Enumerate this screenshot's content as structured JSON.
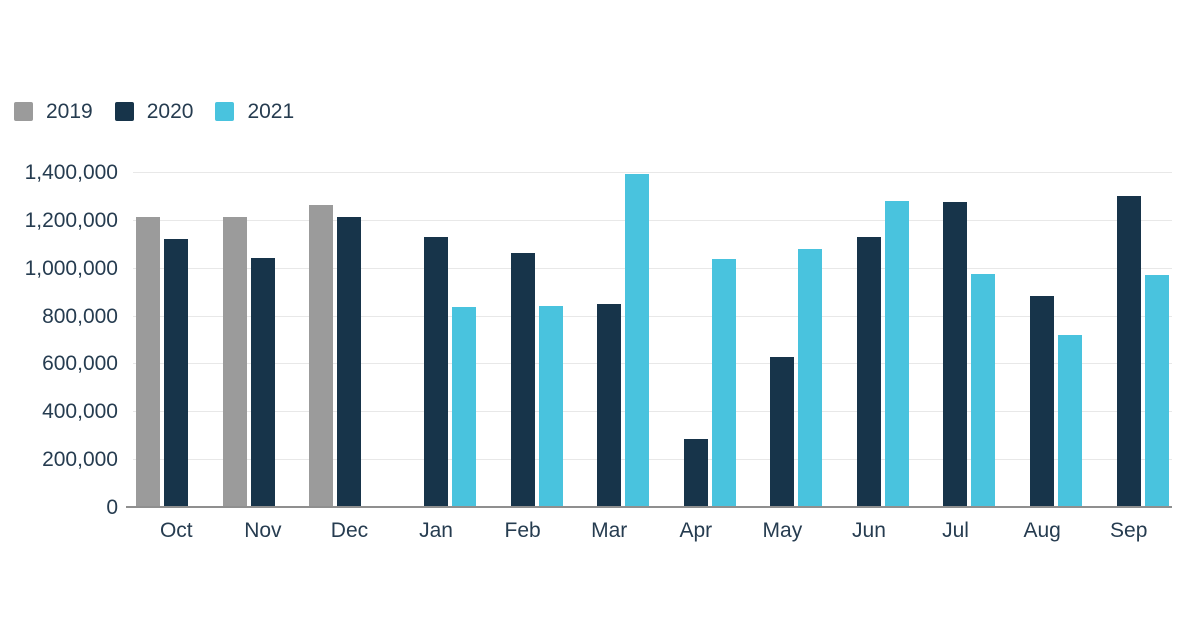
{
  "colors": {
    "series_2019": "#9b9b9b",
    "series_2020": "#17344a",
    "series_2021": "#49c3de",
    "text": "#263c50",
    "gridline": "#e8e8e8",
    "axis_line": "#8f8f8f",
    "background": "#ffffff"
  },
  "legend": {
    "items": [
      {
        "label": "2019",
        "color": "#9b9b9b"
      },
      {
        "label": "2020",
        "color": "#17344a"
      },
      {
        "label": "2021",
        "color": "#49c3de"
      }
    ]
  },
  "chart_data": {
    "type": "bar",
    "title": "",
    "xlabel": "",
    "ylabel": "",
    "categories": [
      "Oct",
      "Nov",
      "Dec",
      "Jan",
      "Feb",
      "Mar",
      "Apr",
      "May",
      "Jun",
      "Jul",
      "Aug",
      "Sep"
    ],
    "series": [
      {
        "name": "2019",
        "color": "#9b9b9b",
        "values": [
          1210000,
          1210000,
          1260000,
          null,
          null,
          null,
          null,
          null,
          null,
          null,
          null,
          null
        ]
      },
      {
        "name": "2020",
        "color": "#17344a",
        "values": [
          1120000,
          1040000,
          1210000,
          1130000,
          1060000,
          850000,
          285000,
          625000,
          1130000,
          1275000,
          880000,
          1300000
        ]
      },
      {
        "name": "2021",
        "color": "#49c3de",
        "values": [
          null,
          null,
          null,
          835000,
          840000,
          1390000,
          1035000,
          1080000,
          1280000,
          975000,
          720000,
          970000
        ]
      }
    ],
    "ylim": [
      0,
      1400000
    ],
    "ytick_interval": 200000,
    "ytick_labels_top_to_bottom": [
      "1,400,000",
      "1,200,000",
      "1,000,000",
      "800,000",
      "600,000",
      "400,000",
      "200,000",
      "0"
    ],
    "grid": "horizontal",
    "legend_position": "top-left"
  }
}
